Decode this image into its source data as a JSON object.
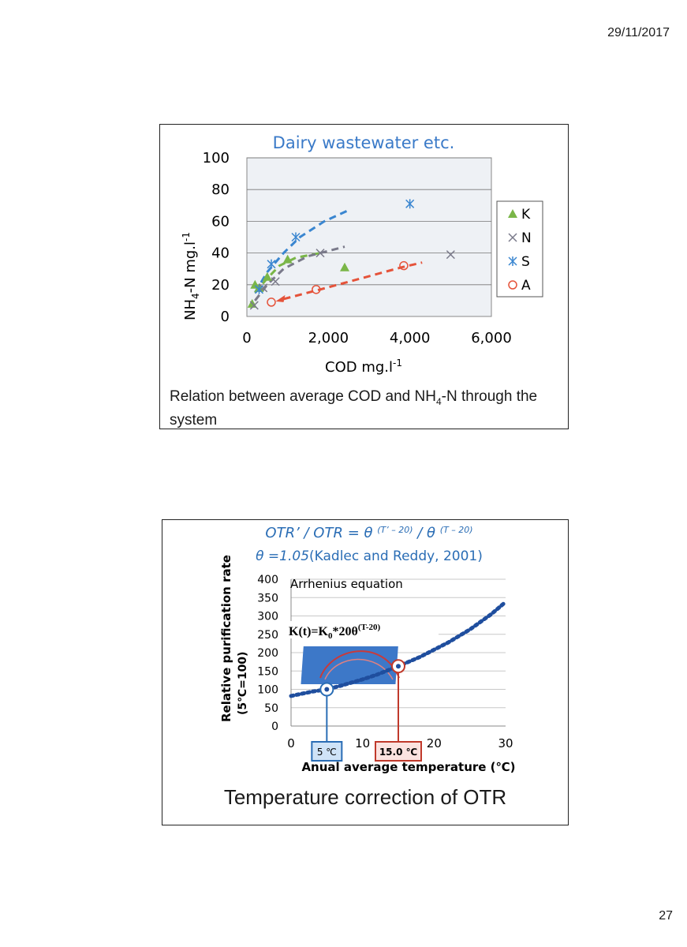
{
  "header": {
    "date": "29/11/2017"
  },
  "footer": {
    "page_number": "27"
  },
  "slide1": {
    "chart_title": "Dairy wastewater etc.",
    "caption_line1_a": "Relation between average COD and NH",
    "caption_line1_sub": "4",
    "caption_line1_b": "-N through the",
    "caption_line2": "system",
    "colors": {
      "K": "#7ab648",
      "N": "#7a7a8a",
      "S": "#3a86d0",
      "A": "#e5533a",
      "title": "#3a7ac8"
    },
    "chart_data": {
      "type": "scatter",
      "title": "Dairy wastewater etc.",
      "xlabel": "COD  mg.l-1",
      "ylabel": "NH4-N mg.l-1",
      "xlim": [
        0,
        6000
      ],
      "ylim": [
        0,
        100
      ],
      "xticks": [
        "0",
        "2,000",
        "4,000",
        "6,000"
      ],
      "yticks": [
        "0",
        "20",
        "40",
        "60",
        "80",
        "100"
      ],
      "legend_position": "right",
      "series": [
        {
          "name": "K",
          "marker": "triangle",
          "points": [
            [
              130,
              8
            ],
            [
              200,
              20
            ],
            [
              300,
              18
            ],
            [
              500,
              25
            ],
            [
              1000,
              36
            ],
            [
              2400,
              31
            ]
          ]
        },
        {
          "name": "N",
          "marker": "x",
          "points": [
            [
              180,
              7
            ],
            [
              400,
              18
            ],
            [
              700,
              22
            ],
            [
              1800,
              40
            ],
            [
              5000,
              39
            ]
          ]
        },
        {
          "name": "S",
          "marker": "asterisk",
          "points": [
            [
              300,
              17
            ],
            [
              600,
              33
            ],
            [
              1200,
              50
            ],
            [
              4000,
              71
            ]
          ]
        },
        {
          "name": "A",
          "marker": "circle",
          "points": [
            [
              600,
              9
            ],
            [
              1700,
              17
            ],
            [
              3850,
              32
            ]
          ]
        }
      ],
      "trendlines": [
        {
          "series": "S",
          "points": [
            [
              200,
              15
            ],
            [
              500,
              28
            ],
            [
              900,
              40
            ],
            [
              1300,
              50
            ],
            [
              1900,
              60
            ],
            [
              2500,
              67
            ]
          ]
        },
        {
          "series": "K",
          "points": [
            [
              200,
              15
            ],
            [
              500,
              24
            ],
            [
              800,
              32
            ],
            [
              1200,
              37
            ],
            [
              1800,
              40
            ]
          ]
        },
        {
          "series": "N",
          "points": [
            [
              200,
              10
            ],
            [
              500,
              20
            ],
            [
              900,
              30
            ],
            [
              1500,
              38
            ],
            [
              2400,
              44
            ]
          ]
        },
        {
          "series": "A",
          "points": [
            [
              900,
              11
            ],
            [
              1800,
              17
            ],
            [
              2800,
              24
            ],
            [
              3800,
              31
            ],
            [
              4300,
              34
            ]
          ]
        }
      ]
    }
  },
  "slide2": {
    "formula_line1": "OTR’ / OTR = θ (T’ – 20) / θ (T – 20)",
    "formula_line2_theta": "θ =1.05",
    "formula_line2_ref": "(Kadlec and Reddy, 2001)",
    "arrhenius_label": "Arrhenius equation",
    "equation_label": "K(t)=K₀*20θ(T-20)",
    "caption": "Temperature correction of OTR",
    "box_5c": "5 ℃",
    "box_15c": "15.0 ℃",
    "colors": {
      "curve": "#1f4e9e",
      "box5_border": "#2a6db5",
      "box5_fill": "#cfe3f7",
      "box15_border": "#c0392b",
      "box15_fill": "#fbe3e0"
    },
    "chart_data": {
      "type": "line",
      "xlabel": "Anual average temperature (℃)",
      "ylabel": "Relative purification rate",
      "ylabel2": "(5℃=100)",
      "xlim": [
        0,
        30
      ],
      "ylim": [
        0,
        400
      ],
      "xticks": [
        "0",
        "10",
        "20",
        "30"
      ],
      "yticks": [
        "0",
        "50",
        "100",
        "150",
        "200",
        "250",
        "300",
        "350",
        "400"
      ],
      "grid": true,
      "series": [
        {
          "name": "",
          "x": [
            0,
            3,
            5,
            7,
            10,
            12,
            15,
            18,
            20,
            22,
            25,
            28,
            30
          ],
          "y": [
            82,
            94,
            100,
            110,
            127,
            140,
            163,
            188,
            208,
            228,
            263,
            305,
            338
          ]
        }
      ],
      "highlight_points": [
        [
          5,
          100
        ],
        [
          15,
          163
        ]
      ]
    }
  }
}
